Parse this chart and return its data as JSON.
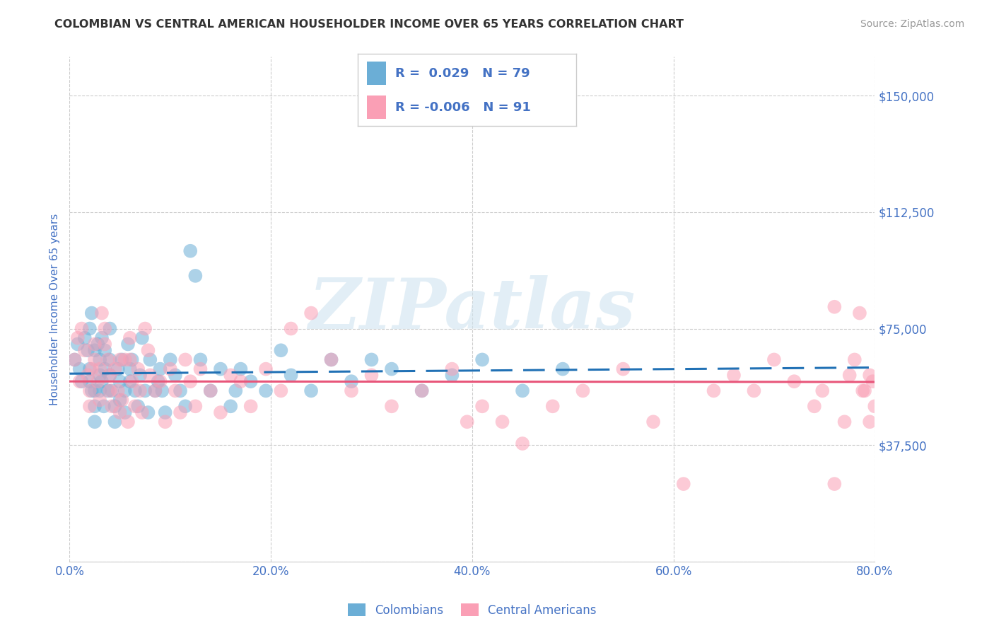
{
  "title": "COLOMBIAN VS CENTRAL AMERICAN HOUSEHOLDER INCOME OVER 65 YEARS CORRELATION CHART",
  "source": "Source: ZipAtlas.com",
  "ylabel": "Householder Income Over 65 years",
  "x_min": 0.0,
  "x_max": 0.8,
  "y_min": 0,
  "y_max": 162500,
  "y_ticks": [
    0,
    37500,
    75000,
    112500,
    150000
  ],
  "y_tick_labels": [
    "",
    "$37,500",
    "$75,000",
    "$112,500",
    "$150,000"
  ],
  "x_tick_labels": [
    "0.0%",
    "20.0%",
    "40.0%",
    "60.0%",
    "80.0%"
  ],
  "x_ticks": [
    0.0,
    0.2,
    0.4,
    0.6,
    0.8
  ],
  "colombians_color": "#6baed6",
  "central_americans_color": "#fa9fb5",
  "colombians_line_color": "#2171b5",
  "central_americans_line_color": "#e8567a",
  "R_colombians": 0.029,
  "N_colombians": 79,
  "R_central_americans": -0.006,
  "N_central_americans": 91,
  "watermark": "ZIPatlas",
  "title_color": "#333333",
  "tick_label_color": "#4472c4",
  "source_color": "#999999",
  "background_color": "#ffffff",
  "colombians_x": [
    0.005,
    0.008,
    0.01,
    0.012,
    0.015,
    0.018,
    0.02,
    0.02,
    0.02,
    0.022,
    0.022,
    0.025,
    0.025,
    0.025,
    0.025,
    0.028,
    0.03,
    0.03,
    0.03,
    0.032,
    0.032,
    0.034,
    0.035,
    0.035,
    0.038,
    0.04,
    0.04,
    0.04,
    0.042,
    0.045,
    0.045,
    0.048,
    0.05,
    0.05,
    0.052,
    0.055,
    0.055,
    0.058,
    0.06,
    0.06,
    0.062,
    0.065,
    0.068,
    0.07,
    0.072,
    0.075,
    0.078,
    0.08,
    0.085,
    0.088,
    0.09,
    0.092,
    0.095,
    0.1,
    0.105,
    0.11,
    0.115,
    0.12,
    0.125,
    0.13,
    0.14,
    0.15,
    0.16,
    0.165,
    0.17,
    0.18,
    0.195,
    0.21,
    0.22,
    0.24,
    0.26,
    0.28,
    0.3,
    0.32,
    0.35,
    0.38,
    0.41,
    0.45,
    0.49
  ],
  "colombians_y": [
    65000,
    70000,
    62000,
    58000,
    72000,
    68000,
    75000,
    58000,
    62000,
    55000,
    80000,
    50000,
    55000,
    45000,
    68000,
    70000,
    65000,
    60000,
    55000,
    72000,
    58000,
    50000,
    62000,
    68000,
    55000,
    75000,
    65000,
    60000,
    55000,
    50000,
    45000,
    62000,
    58000,
    52000,
    65000,
    55000,
    48000,
    70000,
    62000,
    58000,
    65000,
    55000,
    50000,
    60000,
    72000,
    55000,
    48000,
    65000,
    55000,
    58000,
    62000,
    55000,
    48000,
    65000,
    60000,
    55000,
    50000,
    100000,
    92000,
    65000,
    55000,
    62000,
    50000,
    55000,
    62000,
    58000,
    55000,
    68000,
    60000,
    55000,
    65000,
    58000,
    65000,
    62000,
    55000,
    60000,
    65000,
    55000,
    62000
  ],
  "central_americans_x": [
    0.005,
    0.008,
    0.01,
    0.012,
    0.015,
    0.018,
    0.02,
    0.02,
    0.022,
    0.025,
    0.025,
    0.028,
    0.03,
    0.03,
    0.032,
    0.035,
    0.035,
    0.038,
    0.04,
    0.04,
    0.042,
    0.045,
    0.048,
    0.05,
    0.05,
    0.052,
    0.055,
    0.058,
    0.06,
    0.06,
    0.062,
    0.065,
    0.068,
    0.07,
    0.072,
    0.075,
    0.078,
    0.08,
    0.085,
    0.09,
    0.095,
    0.1,
    0.105,
    0.11,
    0.115,
    0.12,
    0.125,
    0.13,
    0.14,
    0.15,
    0.16,
    0.17,
    0.18,
    0.195,
    0.21,
    0.22,
    0.24,
    0.26,
    0.28,
    0.3,
    0.32,
    0.35,
    0.38,
    0.395,
    0.41,
    0.43,
    0.45,
    0.48,
    0.51,
    0.55,
    0.58,
    0.61,
    0.64,
    0.66,
    0.68,
    0.7,
    0.72,
    0.74,
    0.76,
    0.775,
    0.785,
    0.79,
    0.795,
    0.798,
    0.8,
    0.795,
    0.788,
    0.78,
    0.77,
    0.76,
    0.748
  ],
  "central_americans_y": [
    65000,
    72000,
    58000,
    75000,
    68000,
    60000,
    55000,
    50000,
    62000,
    70000,
    65000,
    58000,
    52000,
    62000,
    80000,
    75000,
    70000,
    65000,
    60000,
    55000,
    50000,
    62000,
    55000,
    65000,
    48000,
    52000,
    65000,
    45000,
    72000,
    65000,
    58000,
    50000,
    62000,
    55000,
    48000,
    75000,
    68000,
    60000,
    55000,
    58000,
    45000,
    62000,
    55000,
    48000,
    65000,
    58000,
    50000,
    62000,
    55000,
    48000,
    60000,
    58000,
    50000,
    62000,
    55000,
    75000,
    80000,
    65000,
    55000,
    60000,
    50000,
    55000,
    62000,
    45000,
    50000,
    45000,
    38000,
    50000,
    55000,
    62000,
    45000,
    25000,
    55000,
    60000,
    55000,
    65000,
    58000,
    50000,
    82000,
    60000,
    80000,
    55000,
    45000,
    58000,
    50000,
    60000,
    55000,
    65000,
    45000,
    25000,
    55000
  ]
}
